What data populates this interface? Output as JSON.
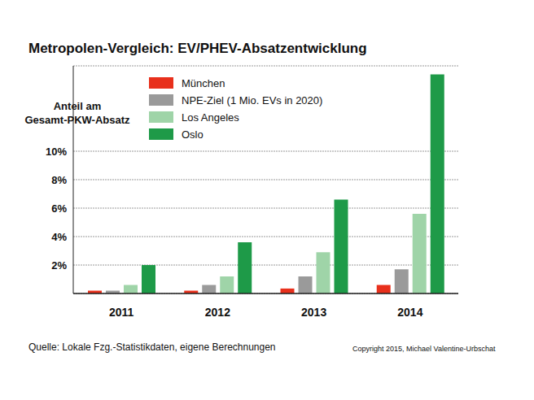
{
  "chart_data": {
    "type": "bar",
    "title": "Metropolen-Vergleich: EV/PHEV-Absatzentwicklung",
    "y_label": "Anteil am Gesamt-PKW-Absatz",
    "categories": [
      "2011",
      "2012",
      "2013",
      "2014"
    ],
    "series": [
      {
        "name": "München",
        "color": "#e8301c",
        "values": [
          0.2,
          0.2,
          0.35,
          0.6
        ]
      },
      {
        "name": "NPE-Ziel (1 Mio. EVs in 2020)",
        "color": "#9a9a9a",
        "values": [
          0.2,
          0.6,
          1.2,
          1.7
        ]
      },
      {
        "name": "Los Angeles",
        "color": "#9fd4a8",
        "values": [
          0.6,
          1.2,
          2.9,
          5.6
        ]
      },
      {
        "name": "Oslo",
        "color": "#1e9a48",
        "values": [
          2.0,
          3.6,
          6.6,
          15.4
        ]
      }
    ],
    "ylim": [
      0,
      16
    ],
    "yticks": [
      {
        "value": 2,
        "label": "2%"
      },
      {
        "value": 4,
        "label": "4%"
      },
      {
        "value": 6,
        "label": "6%"
      },
      {
        "value": 8,
        "label": "8%"
      },
      {
        "value": 10,
        "label": "10%"
      }
    ],
    "grid": true,
    "annotations": [
      "Quelle: Lokale Fzg.-Statistikdaten, eigene Berechnungen",
      "Copyright 2015, Michael Valentine-Urbschat"
    ]
  }
}
